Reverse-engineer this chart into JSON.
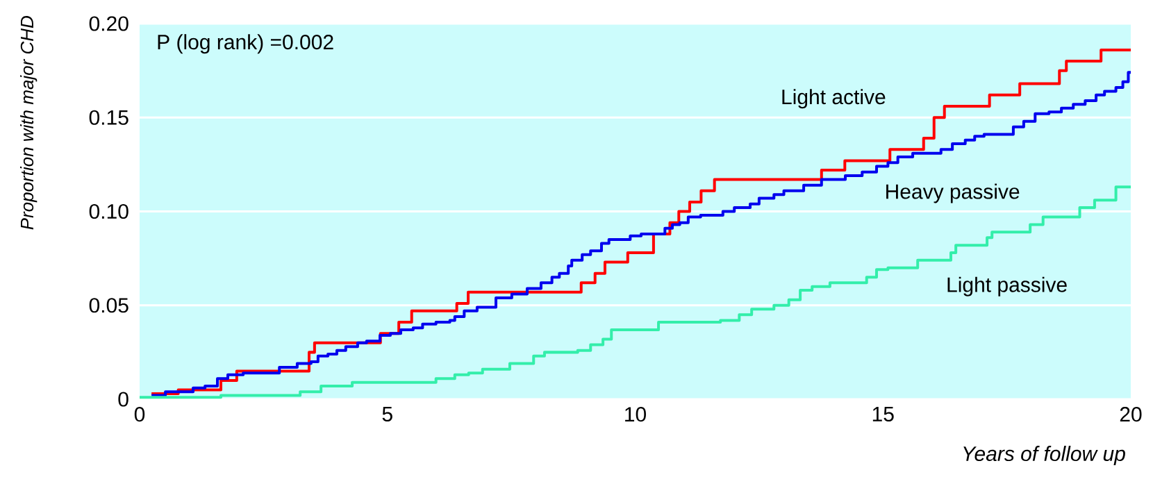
{
  "chart_data": {
    "type": "step",
    "xlabel": "Years of follow up",
    "ylabel": "Proportion with major CHD",
    "annotations": [
      "P (log rank) =0.002"
    ],
    "xlim": [
      0,
      20
    ],
    "ylim": [
      0,
      0.2
    ],
    "xticks": [
      0,
      5,
      10,
      15,
      20
    ],
    "yticks": [
      0,
      0.05,
      {
        "value": 0.1,
        "label": "0.10"
      },
      0.15,
      {
        "value": 0.2,
        "label": "0.20"
      }
    ],
    "grid": "y",
    "series": [
      {
        "name": "Light active",
        "color": "#ff0000",
        "x": [
          0.24,
          0.78,
          1.64,
          1.96,
          3.42,
          3.53,
          4.86,
          5.23,
          5.49,
          6.4,
          6.63,
          8.91,
          9.19,
          9.39,
          9.85,
          10.37,
          10.7,
          10.88,
          11.1,
          11.33,
          11.6,
          13.76,
          14.23,
          15.14,
          15.82,
          16.03,
          16.24,
          17.15,
          17.76,
          18.56,
          18.7,
          19.4,
          20
        ],
        "values": [
          0.003,
          0.005,
          0.01,
          0.015,
          0.025,
          0.03,
          0.035,
          0.041,
          0.047,
          0.051,
          0.057,
          0.062,
          0.067,
          0.073,
          0.078,
          0.088,
          0.094,
          0.1,
          0.105,
          0.111,
          0.117,
          0.122,
          0.127,
          0.133,
          0.139,
          0.15,
          0.156,
          0.162,
          0.168,
          0.175,
          0.18,
          0.186,
          0.186
        ]
      },
      {
        "name": "Heavy passive",
        "color": "#0000ee",
        "x": [
          0.24,
          0.52,
          1.08,
          1.32,
          1.57,
          1.78,
          2.09,
          2.82,
          3.18,
          3.46,
          3.6,
          3.8,
          3.98,
          4.16,
          4.4,
          4.58,
          4.85,
          5.06,
          5.27,
          5.52,
          5.71,
          5.98,
          6.26,
          6.36,
          6.55,
          6.81,
          7.19,
          7.51,
          7.82,
          8.1,
          8.32,
          8.47,
          8.65,
          8.72,
          8.93,
          9.1,
          9.32,
          9.47,
          9.9,
          10.12,
          10.6,
          10.75,
          10.9,
          11.07,
          11.32,
          11.77,
          12,
          12.32,
          12.5,
          12.8,
          13,
          13.4,
          13.76,
          14.24,
          14.58,
          14.87,
          15.1,
          15.3,
          15.6,
          16.17,
          16.4,
          16.66,
          16.85,
          17.04,
          17.63,
          17.84,
          18.07,
          18.35,
          18.6,
          18.84,
          19.08,
          19.3,
          19.47,
          19.7,
          19.84,
          19.95,
          20
        ],
        "values": [
          0.002,
          0.004,
          0.006,
          0.007,
          0.011,
          0.013,
          0.014,
          0.017,
          0.019,
          0.02,
          0.023,
          0.024,
          0.026,
          0.028,
          0.03,
          0.031,
          0.034,
          0.035,
          0.037,
          0.038,
          0.04,
          0.041,
          0.042,
          0.044,
          0.047,
          0.049,
          0.054,
          0.056,
          0.059,
          0.062,
          0.065,
          0.067,
          0.071,
          0.074,
          0.077,
          0.079,
          0.083,
          0.085,
          0.087,
          0.088,
          0.091,
          0.093,
          0.094,
          0.097,
          0.098,
          0.1,
          0.102,
          0.104,
          0.107,
          0.109,
          0.111,
          0.114,
          0.117,
          0.119,
          0.121,
          0.124,
          0.126,
          0.129,
          0.131,
          0.133,
          0.136,
          0.138,
          0.14,
          0.141,
          0.145,
          0.148,
          0.152,
          0.153,
          0.155,
          0.157,
          0.159,
          0.162,
          0.164,
          0.166,
          0.169,
          0.174,
          0.174
        ]
      },
      {
        "name": "Light passive",
        "color": "#33eeaa",
        "x": [
          0,
          1.64,
          3.24,
          3.66,
          4.29,
          5.98,
          6.36,
          6.64,
          6.92,
          7.47,
          7.95,
          8.17,
          8.84,
          9.1,
          9.35,
          9.52,
          10.47,
          11.72,
          12.1,
          12.35,
          12.8,
          13.1,
          13.33,
          13.57,
          13.93,
          14.67,
          14.87,
          15.1,
          15.7,
          16.37,
          16.47,
          17.1,
          17.2,
          17.97,
          18.23,
          18.97,
          19.27,
          19.7,
          20
        ],
        "values": [
          0.001,
          0.002,
          0.004,
          0.007,
          0.009,
          0.011,
          0.013,
          0.014,
          0.016,
          0.019,
          0.023,
          0.025,
          0.026,
          0.029,
          0.032,
          0.037,
          0.041,
          0.042,
          0.045,
          0.048,
          0.05,
          0.053,
          0.058,
          0.06,
          0.062,
          0.065,
          0.069,
          0.07,
          0.074,
          0.078,
          0.082,
          0.086,
          0.089,
          0.093,
          0.097,
          0.102,
          0.106,
          0.113,
          0.113
        ]
      }
    ]
  }
}
